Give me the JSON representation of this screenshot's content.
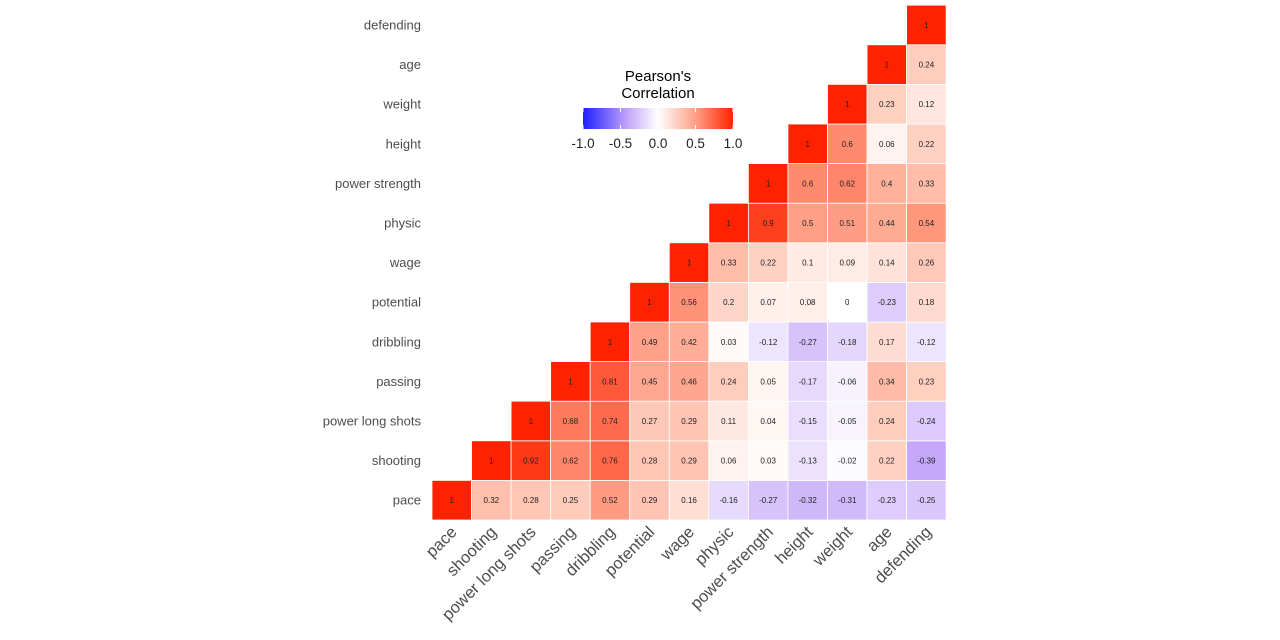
{
  "chart_data": {
    "type": "heatmap",
    "legend": {
      "title_lines": [
        "Pearson's",
        "Correlation"
      ],
      "ticks": [
        "-1.0",
        "-0.5",
        "0.0",
        "0.5",
        "1.0"
      ],
      "tick_values": [
        -1,
        -0.5,
        0,
        0.5,
        1
      ],
      "placement": "top-center"
    },
    "colors": {
      "low": "#1f1fff",
      "mid": "#ffffff",
      "high": "#ff2200"
    },
    "variables": [
      "pace",
      "shooting",
      "power long shots",
      "passing",
      "dribbling",
      "potential",
      "wage",
      "physic",
      "power strength",
      "height",
      "weight",
      "age",
      "defending"
    ],
    "rows": [
      {
        "name": "pace",
        "values": [
          "1",
          "0.32",
          "0.28",
          "0.25",
          "0.52",
          "0.29",
          "0.16",
          "-0.16",
          "-0.27",
          "-0.32",
          "-0.31",
          "-0.23",
          "-0.25"
        ]
      },
      {
        "name": "shooting",
        "values": [
          "1",
          "0.92",
          "0.62",
          "0.76",
          "0.28",
          "0.29",
          "0.06",
          "0.03",
          "-0.13",
          "-0.02",
          "0.22",
          "-0.39"
        ]
      },
      {
        "name": "power long shots",
        "values": [
          "1",
          "0.68",
          "0.74",
          "0.27",
          "0.29",
          "0.11",
          "0.04",
          "-0.15",
          "-0.05",
          "0.24",
          "-0.24"
        ]
      },
      {
        "name": "passing",
        "values": [
          "1",
          "0.81",
          "0.45",
          "0.46",
          "0.24",
          "0.05",
          "-0.17",
          "-0.06",
          "0.34",
          "0.23"
        ]
      },
      {
        "name": "dribbling",
        "values": [
          "1",
          "0.49",
          "0.42",
          "0.03",
          "-0.12",
          "-0.27",
          "-0.18",
          "0.17",
          "-0.12"
        ]
      },
      {
        "name": "potential",
        "values": [
          "1",
          "0.56",
          "0.2",
          "0.07",
          "0.08",
          "0",
          "-0.23",
          "0.18"
        ]
      },
      {
        "name": "wage",
        "values": [
          "1",
          "0.33",
          "0.22",
          "0.1",
          "0.09",
          "0.14",
          "0.26"
        ]
      },
      {
        "name": "physic",
        "values": [
          "1",
          "0.9",
          "0.5",
          "0.51",
          "0.44",
          "0.54"
        ]
      },
      {
        "name": "power strength",
        "values": [
          "1",
          "0.6",
          "0.62",
          "0.4",
          "0.33"
        ]
      },
      {
        "name": "height",
        "values": [
          "1",
          "0.6",
          "0.06",
          "0.22"
        ]
      },
      {
        "name": "weight",
        "values": [
          "1",
          "0.23",
          "0.12"
        ]
      },
      {
        "name": "age",
        "values": [
          "1",
          "0.24"
        ]
      },
      {
        "name": "defending",
        "values": [
          "1"
        ]
      }
    ]
  }
}
